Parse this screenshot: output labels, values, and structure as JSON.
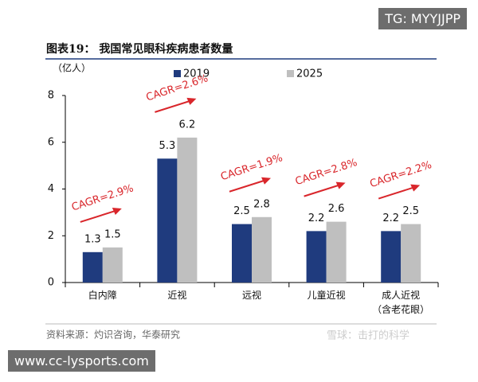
{
  "chart_data": {
    "type": "bar",
    "title": "图表19： 我国常见眼科疾病患者数量",
    "ylabel": "（亿人）",
    "categories": [
      "白内障",
      "近视",
      "远视",
      "儿童近视",
      "成人近视\n（含老花眼）"
    ],
    "series": [
      {
        "name": "2019",
        "color": "#1f3b7e",
        "values": [
          1.3,
          5.3,
          2.5,
          2.2,
          2.2
        ]
      },
      {
        "name": "2025",
        "color": "#bfbfbf",
        "values": [
          1.5,
          6.2,
          2.8,
          2.6,
          2.5
        ]
      }
    ],
    "annotations": [
      "CAGR=2.9%",
      "CAGR=2.6%",
      "CAGR=1.9%",
      "CAGR=2.8%",
      "CAGR=2.2%"
    ],
    "ylim": [
      0,
      8
    ],
    "yticks": [
      0,
      2,
      4,
      6,
      8
    ],
    "grid": false,
    "source": "资料来源：灼识咨询，华泰研究"
  },
  "watermarks": {
    "top": "TG: MYYJJPP",
    "bottom_left": "www.cc-lysports.com",
    "bottom_right": "雪球：击打的科学"
  }
}
